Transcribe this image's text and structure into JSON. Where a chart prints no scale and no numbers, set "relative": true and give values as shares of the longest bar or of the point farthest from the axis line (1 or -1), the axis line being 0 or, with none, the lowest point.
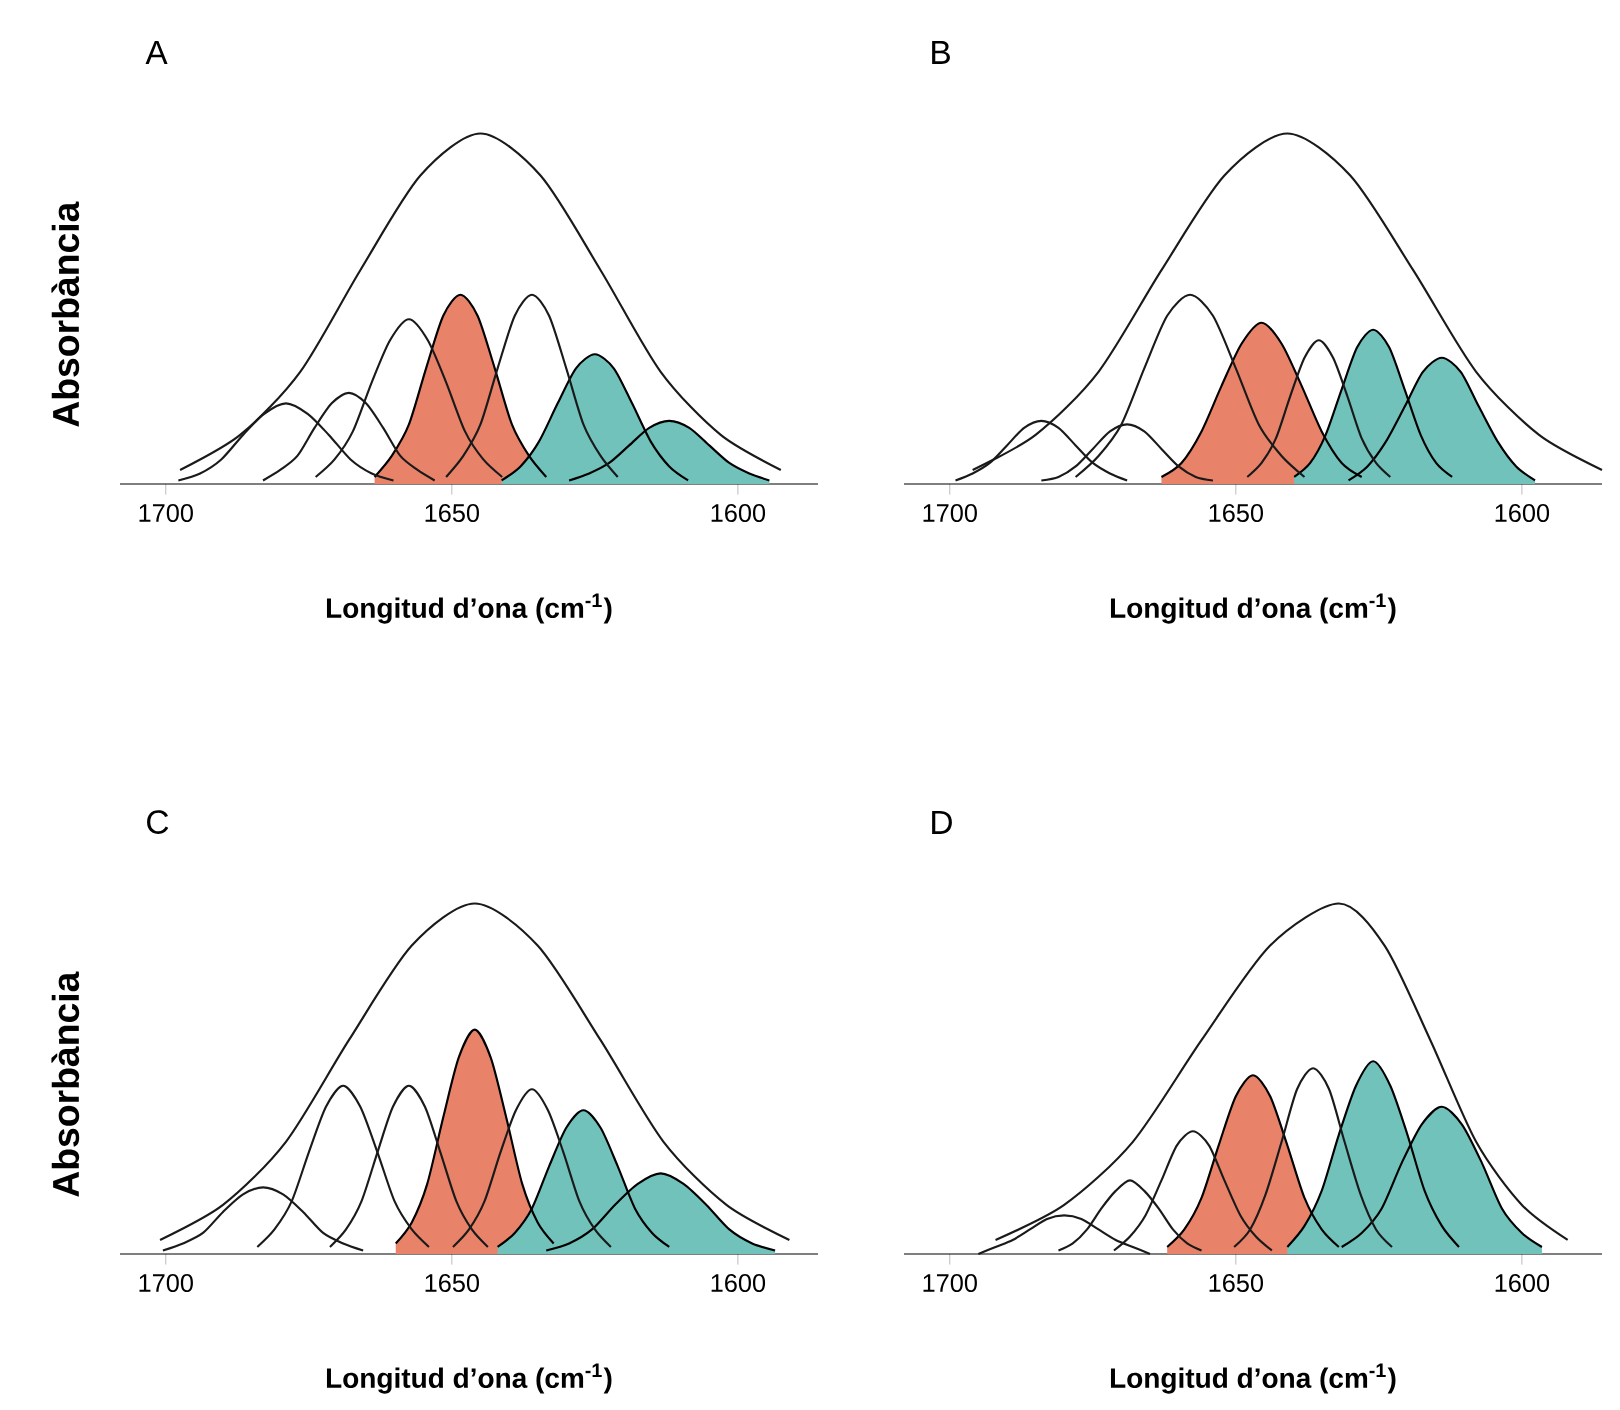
{
  "chart_data": [
    {
      "type": "line",
      "title": "A",
      "xlabel": "Longitud d’ona (cm$^{-1}$)",
      "ylabel": "Absorbància",
      "relative": true,
      "xlim": [
        1708,
        1586
      ],
      "xticks": [
        1700,
        1650,
        1600
      ],
      "series": [
        {
          "type": "area",
          "color": "#e8836a",
          "x": [
            1663.5,
            1660.5,
            1657.5,
            1654.5,
            1651.5,
            1648.5,
            1645.5,
            1642.5,
            1639.5,
            1636.5,
            1633.5
          ],
          "values": [
            0.02,
            0.08,
            0.17,
            0.33,
            0.48,
            0.54,
            0.48,
            0.33,
            0.17,
            0.08,
            0.02
          ]
        },
        {
          "type": "area",
          "color": "#72c2bc",
          "x": [
            1641.3,
            1638,
            1634.8,
            1631.5,
            1628.3,
            1625,
            1621.7,
            1618.5,
            1615.2,
            1612,
            1608.7
          ],
          "values": [
            0.01,
            0.05,
            0.12,
            0.23,
            0.33,
            0.37,
            0.33,
            0.23,
            0.12,
            0.05,
            0.01
          ]
        },
        {
          "type": "area",
          "color": "#72c2bc",
          "x": [
            1629.5,
            1626,
            1622.5,
            1619,
            1615.5,
            1612,
            1608.5,
            1605,
            1601.5,
            1598,
            1594.5
          ],
          "values": [
            0.01,
            0.03,
            0.06,
            0.11,
            0.16,
            0.18,
            0.16,
            0.11,
            0.06,
            0.03,
            0.01
          ]
        },
        {
          "color": "#1a1a1a",
          "x": [
            1697.5,
            1687,
            1676.5,
            1666,
            1655.5,
            1645,
            1634.5,
            1624,
            1613.5,
            1603,
            1592.5
          ],
          "values": [
            0.04,
            0.14,
            0.32,
            0.61,
            0.88,
            1,
            0.88,
            0.61,
            0.32,
            0.14,
            0.04
          ]
        },
        {
          "type": "line",
          "color": "#1a1a1a",
          "x": [
            1697.8,
            1694,
            1690.3,
            1686.5,
            1682.8,
            1679,
            1675.2,
            1671.5,
            1667.7,
            1664,
            1660.2
          ],
          "values": [
            0.01,
            0.03,
            0.07,
            0.14,
            0.2,
            0.23,
            0.2,
            0.14,
            0.07,
            0.03,
            0.01
          ]
        },
        {
          "type": "line",
          "color": "#1a1a1a",
          "x": [
            1683,
            1680,
            1677,
            1674,
            1671,
            1668,
            1665,
            1662,
            1659,
            1656,
            1653
          ],
          "values": [
            0.01,
            0.04,
            0.08,
            0.16,
            0.23,
            0.26,
            0.23,
            0.16,
            0.08,
            0.04,
            0.01
          ]
        },
        {
          "type": "line",
          "color": "#1a1a1a",
          "x": [
            1673.8,
            1670.5,
            1667.3,
            1664,
            1660.8,
            1657.5,
            1654.2,
            1651,
            1647.7,
            1644.5,
            1641.2
          ],
          "values": [
            0.02,
            0.07,
            0.15,
            0.29,
            0.41,
            0.47,
            0.41,
            0.29,
            0.15,
            0.07,
            0.02
          ]
        },
        {
          "type": "line",
          "color": "#1a1a1a",
          "x": [
            1651,
            1648,
            1645,
            1642,
            1639,
            1636,
            1633,
            1630,
            1627,
            1624,
            1621
          ],
          "values": [
            0.02,
            0.08,
            0.17,
            0.33,
            0.48,
            0.54,
            0.48,
            0.33,
            0.17,
            0.08,
            0.02
          ]
        }
      ]
    },
    {
      "type": "line",
      "title": "B",
      "xlabel": "Longitud d’ona (cm$^{-1}$)",
      "relative": true,
      "xlim": [
        1708,
        1586
      ],
      "xticks": [
        1700,
        1650,
        1600
      ],
      "series": [
        {
          "type": "area",
          "color": "#e8836a",
          "x": [
            1663,
            1659.5,
            1656,
            1652.5,
            1649,
            1645.5,
            1642,
            1638.5,
            1635,
            1631.5,
            1628
          ],
          "values": [
            0.02,
            0.06,
            0.15,
            0.28,
            0.4,
            0.46,
            0.4,
            0.28,
            0.15,
            0.06,
            0.02
          ]
        },
        {
          "type": "area",
          "color": "#72c2bc",
          "x": [
            1639.8,
            1637,
            1634.3,
            1631.5,
            1628.8,
            1626,
            1623.2,
            1620.5,
            1617.7,
            1615,
            1612.2
          ],
          "values": [
            0.02,
            0.06,
            0.14,
            0.27,
            0.39,
            0.44,
            0.39,
            0.27,
            0.14,
            0.06,
            0.02
          ]
        },
        {
          "type": "area",
          "color": "#72c2bc",
          "x": [
            1630.3,
            1627,
            1623.8,
            1620.5,
            1617.3,
            1614,
            1610.7,
            1607.5,
            1604.2,
            1601,
            1597.7
          ],
          "values": [
            0.01,
            0.05,
            0.12,
            0.22,
            0.32,
            0.36,
            0.32,
            0.22,
            0.12,
            0.05,
            0.01
          ]
        },
        {
          "color": "#1a1a1a",
          "x": [
            1696,
            1685,
            1674,
            1663,
            1652,
            1641,
            1630,
            1619,
            1608,
            1597,
            1586
          ],
          "values": [
            0.04,
            0.14,
            0.32,
            0.61,
            0.88,
            1,
            0.88,
            0.61,
            0.32,
            0.14,
            0.04
          ]
        },
        {
          "type": "line",
          "color": "#1a1a1a",
          "x": [
            1699,
            1696,
            1693,
            1690,
            1687,
            1684,
            1681,
            1678,
            1675,
            1672,
            1669
          ],
          "values": [
            0.01,
            0.03,
            0.06,
            0.11,
            0.16,
            0.18,
            0.16,
            0.11,
            0.06,
            0.03,
            0.01
          ]
        },
        {
          "type": "line",
          "color": "#1a1a1a",
          "x": [
            1684,
            1681,
            1678,
            1675,
            1672,
            1669,
            1666,
            1663,
            1660,
            1657,
            1654
          ],
          "values": [
            0.01,
            0.02,
            0.05,
            0.1,
            0.15,
            0.17,
            0.15,
            0.1,
            0.05,
            0.02,
            0.01
          ]
        },
        {
          "type": "line",
          "color": "#1a1a1a",
          "x": [
            1678,
            1674,
            1670,
            1666,
            1662,
            1658,
            1654,
            1650,
            1646,
            1642,
            1638
          ],
          "values": [
            0.02,
            0.08,
            0.17,
            0.33,
            0.48,
            0.54,
            0.48,
            0.33,
            0.17,
            0.08,
            0.02
          ]
        },
        {
          "type": "line",
          "color": "#1a1a1a",
          "x": [
            1648,
            1645.5,
            1643,
            1640.5,
            1638,
            1635.5,
            1633,
            1630.5,
            1628,
            1625.5,
            1623
          ],
          "values": [
            0.02,
            0.06,
            0.13,
            0.25,
            0.36,
            0.41,
            0.36,
            0.25,
            0.13,
            0.06,
            0.02
          ]
        }
      ]
    },
    {
      "type": "line",
      "title": "C",
      "xlabel": "Longitud d’ona (cm$^{-1}$)",
      "ylabel": "Absorbància",
      "relative": true,
      "xlim": [
        1708,
        1586
      ],
      "xticks": [
        1700,
        1650,
        1600
      ],
      "series": [
        {
          "type": "area",
          "color": "#e8836a",
          "x": [
            1659.8,
            1657,
            1654.3,
            1651.5,
            1648.8,
            1646,
            1643.2,
            1640.5,
            1637.7,
            1635,
            1632.2
          ],
          "values": [
            0.03,
            0.09,
            0.2,
            0.39,
            0.56,
            0.64,
            0.56,
            0.39,
            0.2,
            0.09,
            0.03
          ]
        },
        {
          "type": "area",
          "color": "#72c2bc",
          "x": [
            1642,
            1639,
            1636,
            1633,
            1630,
            1627,
            1624,
            1621,
            1618,
            1615,
            1612
          ],
          "values": [
            0.02,
            0.06,
            0.13,
            0.25,
            0.36,
            0.41,
            0.36,
            0.25,
            0.13,
            0.06,
            0.02
          ]
        },
        {
          "type": "area",
          "color": "#72c2bc",
          "x": [
            1633.5,
            1629.5,
            1625.5,
            1621.5,
            1617.5,
            1613.5,
            1609.5,
            1605.5,
            1601.5,
            1597.5,
            1593.5
          ],
          "values": [
            0.01,
            0.03,
            0.07,
            0.14,
            0.2,
            0.23,
            0.2,
            0.14,
            0.07,
            0.03,
            0.01
          ]
        },
        {
          "color": "#1a1a1a",
          "x": [
            1701,
            1690,
            1679,
            1668,
            1657,
            1646,
            1635,
            1624,
            1613,
            1602,
            1591
          ],
          "values": [
            0.04,
            0.14,
            0.32,
            0.61,
            0.88,
            1,
            0.88,
            0.61,
            0.32,
            0.14,
            0.04
          ]
        },
        {
          "type": "line",
          "color": "#1a1a1a",
          "x": [
            1700.5,
            1697,
            1693.5,
            1690,
            1686.5,
            1683,
            1679.5,
            1676,
            1672.5,
            1669,
            1665.5
          ],
          "values": [
            0.01,
            0.03,
            0.06,
            0.12,
            0.17,
            0.19,
            0.17,
            0.12,
            0.06,
            0.03,
            0.01
          ]
        },
        {
          "type": "line",
          "color": "#1a1a1a",
          "x": [
            1684,
            1681,
            1678,
            1675,
            1672,
            1669,
            1666,
            1663,
            1660,
            1657,
            1654
          ],
          "values": [
            0.02,
            0.07,
            0.15,
            0.29,
            0.42,
            0.48,
            0.42,
            0.29,
            0.15,
            0.07,
            0.02
          ]
        },
        {
          "type": "line",
          "color": "#1a1a1a",
          "x": [
            1671.3,
            1668.5,
            1665.8,
            1663,
            1660.3,
            1657.5,
            1654.7,
            1652,
            1649.2,
            1646.5,
            1643.7
          ],
          "values": [
            0.02,
            0.07,
            0.15,
            0.29,
            0.42,
            0.48,
            0.42,
            0.29,
            0.15,
            0.07,
            0.02
          ]
        },
        {
          "type": "line",
          "color": "#1a1a1a",
          "x": [
            1649.8,
            1647,
            1644.3,
            1641.5,
            1638.8,
            1636,
            1633.2,
            1630.5,
            1627.7,
            1625,
            1622.2
          ],
          "values": [
            0.02,
            0.07,
            0.15,
            0.29,
            0.41,
            0.47,
            0.41,
            0.29,
            0.15,
            0.07,
            0.02
          ]
        }
      ]
    },
    {
      "type": "line",
      "title": "D",
      "xlabel": "Longitud d’ona (cm$^{-1}$)",
      "relative": true,
      "xlim": [
        1708,
        1586
      ],
      "xticks": [
        1700,
        1650,
        1600
      ],
      "series": [
        {
          "type": "area",
          "color": "#e8836a",
          "x": [
            1662,
            1659,
            1656,
            1653,
            1650,
            1647,
            1644,
            1641,
            1638,
            1635,
            1632
          ],
          "values": [
            0.02,
            0.07,
            0.16,
            0.31,
            0.45,
            0.51,
            0.45,
            0.31,
            0.16,
            0.07,
            0.02
          ]
        },
        {
          "type": "area",
          "color": "#72c2bc",
          "x": [
            1641,
            1638,
            1635,
            1632,
            1629,
            1626,
            1623,
            1620,
            1617,
            1614,
            1611
          ],
          "values": [
            0.02,
            0.08,
            0.18,
            0.34,
            0.48,
            0.55,
            0.48,
            0.34,
            0.18,
            0.08,
            0.02
          ]
        },
        {
          "type": "area",
          "color": "#72c2bc",
          "x": [
            1631.5,
            1628,
            1624.5,
            1621,
            1617.5,
            1614,
            1610.5,
            1607,
            1603.5,
            1600,
            1596.5
          ],
          "values": [
            0.02,
            0.06,
            0.13,
            0.26,
            0.37,
            0.42,
            0.37,
            0.26,
            0.13,
            0.06,
            0.02
          ]
        },
        {
          "color": "#1a1a1a",
          "x": [
            1692,
            1680,
            1668,
            1656,
            1644,
            1632,
            1624,
            1616,
            1608,
            1600,
            1592
          ],
          "values": [
            0.04,
            0.14,
            0.32,
            0.61,
            0.88,
            1,
            0.88,
            0.61,
            0.32,
            0.14,
            0.04
          ]
        },
        {
          "type": "line",
          "color": "#1a1a1a",
          "x": [
            1695,
            1692,
            1689,
            1686,
            1683,
            1680,
            1677,
            1674,
            1671,
            1668,
            1665
          ],
          "values": [
            0,
            0.02,
            0.04,
            0.07,
            0.1,
            0.11,
            0.1,
            0.07,
            0.04,
            0.02,
            0
          ]
        },
        {
          "type": "line",
          "color": "#1a1a1a",
          "x": [
            1681,
            1678.5,
            1676,
            1673.5,
            1671,
            1668.5,
            1666,
            1663.5,
            1661,
            1658.5,
            1656
          ],
          "values": [
            0.01,
            0.03,
            0.07,
            0.13,
            0.18,
            0.21,
            0.18,
            0.13,
            0.07,
            0.03,
            0.01
          ]
        },
        {
          "type": "line",
          "color": "#1a1a1a",
          "x": [
            1671.3,
            1668.5,
            1665.8,
            1663,
            1660.3,
            1657.5,
            1654.7,
            1652,
            1649.2,
            1646.5,
            1643.7
          ],
          "values": [
            0.01,
            0.05,
            0.11,
            0.21,
            0.31,
            0.35,
            0.31,
            0.21,
            0.11,
            0.05,
            0.01
          ]
        },
        {
          "type": "line",
          "color": "#1a1a1a",
          "x": [
            1650.3,
            1647.5,
            1644.8,
            1642,
            1639.3,
            1636.5,
            1633.7,
            1631,
            1628.2,
            1625.5,
            1622.7
          ],
          "values": [
            0.02,
            0.07,
            0.17,
            0.32,
            0.47,
            0.53,
            0.47,
            0.32,
            0.17,
            0.07,
            0.02
          ]
        }
      ]
    }
  ]
}
